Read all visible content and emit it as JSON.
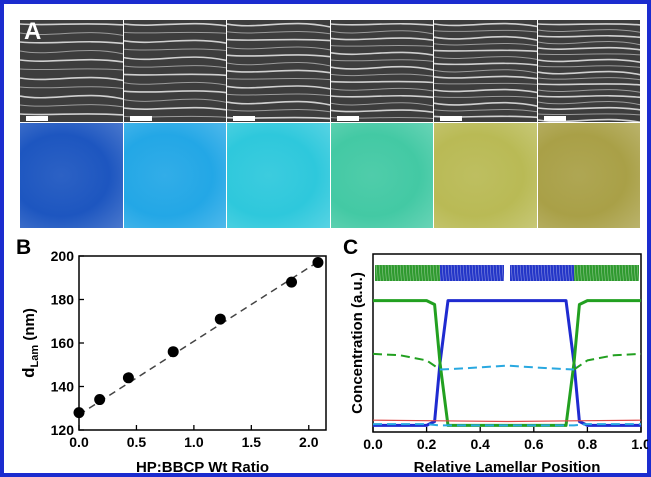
{
  "panels": {
    "a": {
      "letter": "A",
      "sem_tiles": 6,
      "optical_colors": [
        "#1d56c0",
        "#23a7e6",
        "#2ec8dc",
        "#43c9a4",
        "#b9ba55",
        "#a9a047"
      ]
    },
    "b": {
      "letter": "B"
    },
    "c": {
      "letter": "C"
    }
  },
  "chart_data": [
    {
      "type": "scatter",
      "panel": "B",
      "xlabel": "HP:BBCP Wt Ratio",
      "ylabel": "d",
      "ylabel_sub": "Lam",
      "ylabel_unit": "(nm)",
      "xlim": [
        0.0,
        2.15
      ],
      "ylim": [
        120,
        200
      ],
      "xticks": [
        "0.0",
        "0.5",
        "1.0",
        "1.5",
        "2.0"
      ],
      "yticks": [
        "120",
        "140",
        "160",
        "180",
        "200"
      ],
      "points": [
        {
          "x": 0.0,
          "y": 128
        },
        {
          "x": 0.18,
          "y": 134
        },
        {
          "x": 0.43,
          "y": 144
        },
        {
          "x": 0.82,
          "y": 156
        },
        {
          "x": 1.23,
          "y": 171
        },
        {
          "x": 1.85,
          "y": 188
        },
        {
          "x": 2.08,
          "y": 197
        }
      ],
      "fit_line": {
        "x": [
          0.0,
          2.1
        ],
        "y": [
          127,
          198
        ],
        "style": "dashed"
      }
    },
    {
      "type": "line",
      "panel": "C",
      "xlabel": "Relative Lamellar Position",
      "ylabel": "Concentration (a.u.)",
      "xlim": [
        0.0,
        1.0
      ],
      "xticks": [
        "0.0",
        "0.2",
        "0.4",
        "0.6",
        "0.8",
        "1.0"
      ],
      "series": [
        {
          "color": "#1f2bd0",
          "style": "solid",
          "x": [
            0.0,
            0.2,
            0.23,
            0.25,
            0.28,
            0.72,
            0.75,
            0.77,
            0.8,
            1.0
          ],
          "y": [
            0.02,
            0.02,
            0.05,
            0.5,
            0.98,
            0.98,
            0.5,
            0.05,
            0.02,
            0.02
          ]
        },
        {
          "color": "#22a020",
          "style": "solid",
          "x": [
            0.0,
            0.2,
            0.23,
            0.25,
            0.28,
            0.72,
            0.75,
            0.77,
            0.8,
            1.0
          ],
          "y": [
            0.98,
            0.98,
            0.95,
            0.5,
            0.02,
            0.02,
            0.5,
            0.95,
            0.98,
            0.98
          ]
        },
        {
          "color": "#22a020",
          "style": "dashed",
          "x": [
            0.0,
            0.1,
            0.2,
            0.25
          ],
          "y": [
            0.57,
            0.56,
            0.52,
            0.45
          ]
        },
        {
          "color": "#22a020",
          "style": "dashed",
          "x": [
            0.75,
            0.8,
            0.9,
            1.0
          ],
          "y": [
            0.45,
            0.52,
            0.56,
            0.57
          ]
        },
        {
          "color": "#29a8e0",
          "style": "dashed",
          "x": [
            0.25,
            0.35,
            0.5,
            0.65,
            0.75
          ],
          "y": [
            0.45,
            0.46,
            0.48,
            0.46,
            0.45
          ]
        },
        {
          "color": "#e04848",
          "style": "solid",
          "x": [
            0.0,
            0.25,
            0.5,
            0.75,
            1.0
          ],
          "y": [
            0.06,
            0.055,
            0.05,
            0.055,
            0.06
          ]
        },
        {
          "color": "#29a8e0",
          "style": "dashed",
          "x": [
            0.0,
            0.2,
            0.25,
            0.75,
            0.8,
            1.0
          ],
          "y": [
            0.03,
            0.03,
            0.02,
            0.02,
            0.03,
            0.03
          ]
        }
      ]
    }
  ]
}
